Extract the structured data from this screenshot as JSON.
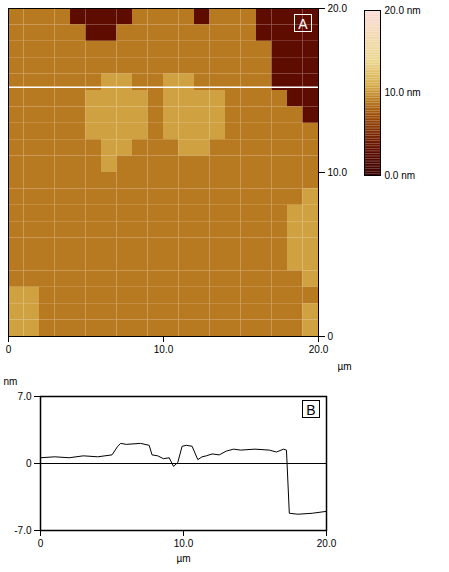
{
  "chart_data": [
    {
      "type": "heatmap",
      "panel_label": "A",
      "x_label": "µm",
      "xlim": [
        0,
        20
      ],
      "ylim": [
        0,
        20
      ],
      "xticks": [
        0,
        {
          "value": 10,
          "label": "10.0"
        },
        {
          "value": 20,
          "label": "20.0"
        }
      ],
      "yticks": [
        0,
        {
          "value": 10,
          "label": "10.0"
        },
        {
          "value": 20,
          "label": "20.0"
        }
      ],
      "cells": [
        [
          9,
          9,
          9,
          9,
          3,
          3,
          3,
          3,
          9,
          9,
          9,
          9,
          3,
          9,
          9,
          9,
          3,
          3,
          3,
          3
        ],
        [
          9,
          9,
          9,
          9,
          9,
          3,
          3,
          9,
          9,
          9,
          9,
          9,
          9,
          9,
          9,
          9,
          3,
          3,
          3,
          3
        ],
        [
          9,
          9,
          9,
          9,
          9,
          9,
          9,
          9,
          9,
          9,
          9,
          9,
          9,
          9,
          9,
          9,
          9,
          3,
          3,
          3
        ],
        [
          9,
          9,
          9,
          9,
          9,
          9,
          9,
          9,
          9,
          9,
          9,
          9,
          9,
          9,
          9,
          9,
          9,
          3,
          3,
          3
        ],
        [
          9,
          9,
          9,
          9,
          9,
          9,
          10.5,
          10.5,
          9,
          9,
          10.5,
          10.5,
          9,
          9,
          9,
          9,
          9,
          3,
          3,
          3
        ],
        [
          9,
          9,
          9,
          9,
          9,
          10.5,
          10.5,
          10.5,
          10.5,
          9,
          10.5,
          10.5,
          10.5,
          10.5,
          9,
          9,
          9,
          9,
          3,
          3
        ],
        [
          9,
          9,
          9,
          9,
          9,
          10.5,
          10.5,
          10.5,
          10.5,
          9,
          10.5,
          10.5,
          10.5,
          10.5,
          9,
          9,
          9,
          9,
          9,
          3
        ],
        [
          9,
          9,
          9,
          9,
          9,
          10.5,
          10.5,
          10.5,
          10.5,
          9,
          10.5,
          10.5,
          10.5,
          10.5,
          9,
          9,
          9,
          9,
          9,
          9
        ],
        [
          9,
          9,
          9,
          9,
          9,
          9,
          10.5,
          10.5,
          9,
          9,
          9,
          10.5,
          10.5,
          9,
          9,
          9,
          9,
          9,
          9,
          9
        ],
        [
          9,
          9,
          9,
          9,
          9,
          9,
          10.5,
          9,
          9,
          9,
          9,
          9,
          9,
          9,
          9,
          9,
          9,
          9,
          9,
          9
        ],
        [
          9,
          9,
          9,
          9,
          9,
          9,
          9,
          9,
          9,
          9,
          9,
          9,
          9,
          9,
          9,
          9,
          9,
          9,
          9,
          9
        ],
        [
          9,
          9,
          9,
          9,
          9,
          9,
          9,
          9,
          9,
          9,
          9,
          9,
          9,
          9,
          9,
          9,
          9,
          9,
          9,
          10.5
        ],
        [
          9,
          9,
          9,
          9,
          9,
          9,
          9,
          9,
          9,
          9,
          9,
          9,
          9,
          9,
          9,
          9,
          9,
          9,
          10.5,
          10.5
        ],
        [
          9,
          9,
          9,
          9,
          9,
          9,
          9,
          9,
          9,
          9,
          9,
          9,
          9,
          9,
          9,
          9,
          9,
          9,
          10.5,
          10.5
        ],
        [
          9,
          9,
          9,
          9,
          9,
          9,
          9,
          9,
          9,
          9,
          9,
          9,
          9,
          9,
          9,
          9,
          9,
          9,
          10.5,
          10.5
        ],
        [
          9,
          9,
          9,
          9,
          9,
          9,
          9,
          9,
          9,
          9,
          9,
          9,
          9,
          9,
          9,
          9,
          9,
          9,
          10.5,
          10.5
        ],
        [
          9,
          9,
          9,
          9,
          9,
          9,
          9,
          9,
          9,
          9,
          9,
          9,
          9,
          9,
          9,
          9,
          9,
          9,
          9,
          10.5
        ],
        [
          10.5,
          10.5,
          9,
          9,
          9,
          9,
          9,
          9,
          9,
          9,
          9,
          9,
          9,
          9,
          9,
          9,
          9,
          9,
          9,
          9
        ],
        [
          10.5,
          10.5,
          9,
          9,
          9,
          9,
          9,
          9,
          9,
          9,
          9,
          9,
          9,
          9,
          9,
          9,
          9,
          9,
          9,
          10.5
        ],
        [
          10.5,
          10.5,
          9,
          9,
          9,
          9,
          9,
          9,
          9,
          9,
          9,
          9,
          9,
          9,
          9,
          9,
          9,
          9,
          9,
          10.5
        ]
      ],
      "profile_line": {
        "y": 15.2,
        "color": "#ffffff"
      },
      "colorbar": {
        "range": [
          0,
          20
        ],
        "ticks": [
          {
            "value": 0,
            "label": "0.0 nm"
          },
          {
            "value": 10,
            "label": "10.0 nm"
          },
          {
            "value": 20,
            "label": "20.0 nm"
          }
        ]
      }
    },
    {
      "type": "line",
      "panel_label": "B",
      "x_label": "µm",
      "y_label": "nm",
      "color": "#000000",
      "xlim": [
        0,
        20
      ],
      "ylim": [
        -7,
        7
      ],
      "xticks": [
        0,
        {
          "value": 10,
          "label": "10.0"
        },
        {
          "value": 20,
          "label": "20.0"
        }
      ],
      "yticks": [
        {
          "value": -7,
          "label": "-7.0"
        },
        0,
        {
          "value": 7,
          "label": "7.0"
        }
      ],
      "x": [
        0,
        1,
        2,
        3,
        4,
        5,
        5.4,
        5.6,
        6,
        7,
        7.6,
        7.8,
        8.2,
        8.6,
        9,
        9.3,
        9.6,
        9.9,
        10.2,
        10.6,
        11,
        11.3,
        11.6,
        12,
        12.5,
        13,
        13.5,
        14,
        15,
        16,
        16.5,
        17,
        17.2,
        17.4,
        18,
        19,
        20
      ],
      "values": [
        0.6,
        0.7,
        0.6,
        0.8,
        0.7,
        0.9,
        1.8,
        2.1,
        2.0,
        2.1,
        1.9,
        0.9,
        0.8,
        0.5,
        0.6,
        -0.3,
        0.1,
        1.8,
        1.9,
        1.8,
        0.4,
        0.7,
        0.8,
        1.0,
        0.9,
        1.3,
        1.5,
        1.4,
        1.5,
        1.4,
        1.2,
        1.5,
        1.4,
        -5.2,
        -5.3,
        -5.2,
        -5.0
      ]
    }
  ]
}
